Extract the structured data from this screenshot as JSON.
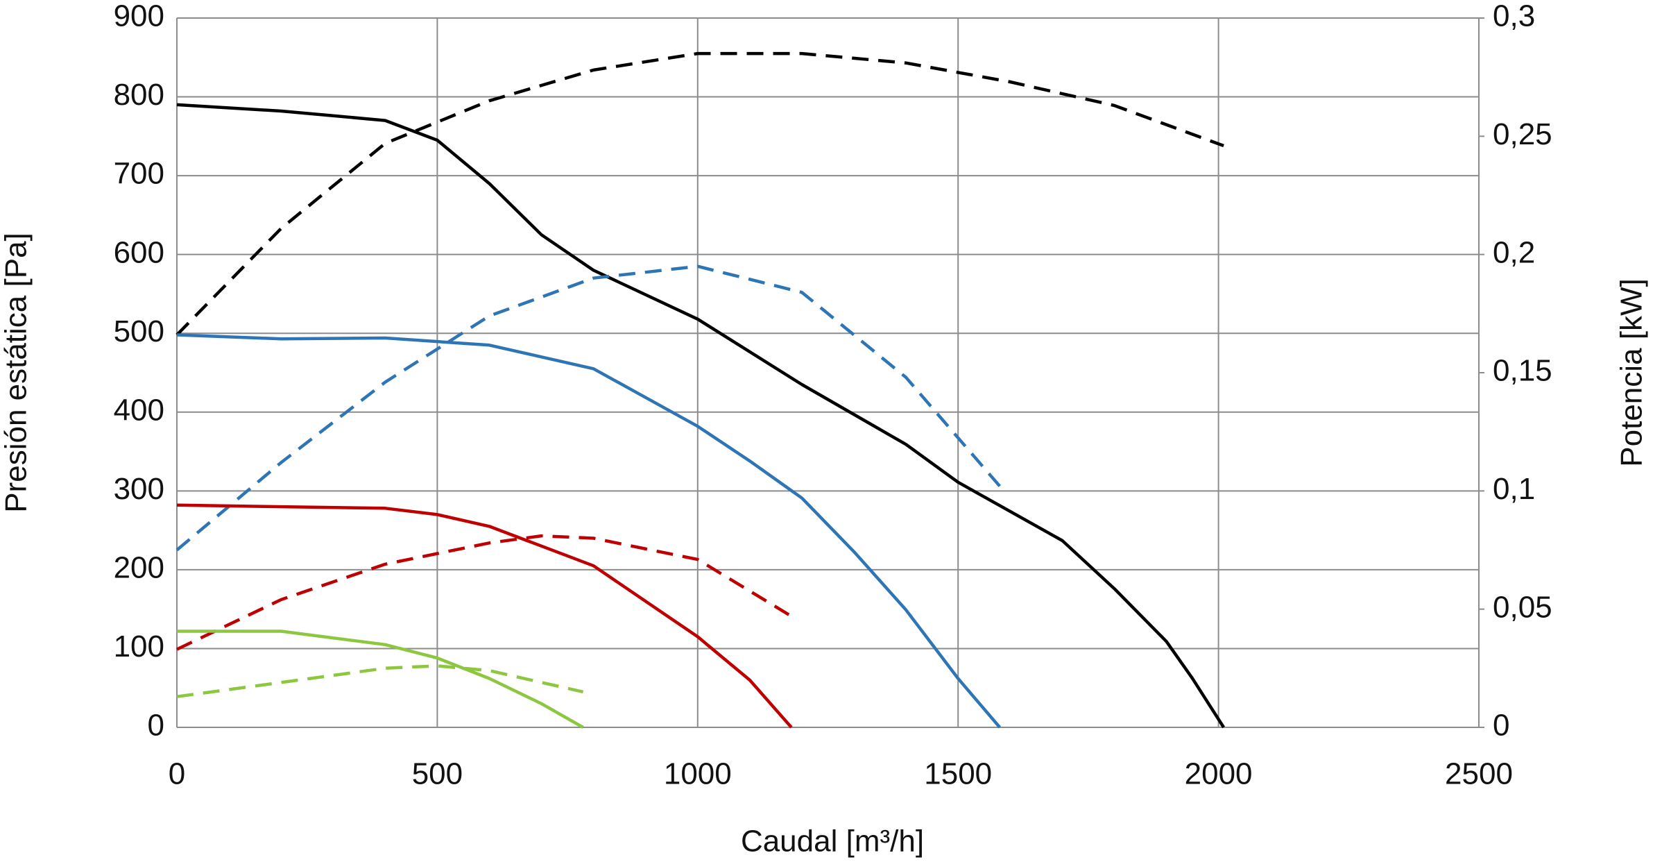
{
  "chart_data": {
    "type": "line",
    "x_label": "Caudal [m³/h]",
    "y_label": "Presión estática [Pa]",
    "y2_label": "Potencia [kW]",
    "xlim": [
      0,
      2500
    ],
    "xticks": [
      0,
      500,
      1000,
      1500,
      2000,
      2500
    ],
    "ylim": [
      0,
      900
    ],
    "yticks": [
      0,
      100,
      200,
      300,
      400,
      500,
      600,
      700,
      800,
      900
    ],
    "y2lim": [
      0,
      0.3
    ],
    "y2ticks": [
      0,
      {
        "value": 0.05,
        "label": "0,05"
      },
      {
        "value": 0.1,
        "label": "0,1"
      },
      {
        "value": 0.15,
        "label": "0,15"
      },
      {
        "value": 0.2,
        "label": "0,2"
      },
      {
        "value": 0.25,
        "label": "0,25"
      },
      {
        "value": 0.3,
        "label": "0,3"
      }
    ],
    "grid": true,
    "series": [
      {
        "color": "#000000",
        "dashed": false,
        "x": [
          0,
          200,
          300,
          400,
          500,
          600,
          700,
          800,
          1000,
          1200,
          1400,
          1500,
          1700,
          1800,
          1900,
          1950,
          2010
        ],
        "values": [
          790,
          782,
          776,
          770,
          745,
          690,
          625,
          580,
          518,
          435,
          359,
          311,
          237,
          176,
          109,
          62,
          0
        ]
      },
      {
        "color": "#000000",
        "dashed": true,
        "axis": "y2",
        "x": [
          0,
          200,
          400,
          600,
          800,
          1000,
          1200,
          1400,
          1600,
          1800,
          2010
        ],
        "values": [
          0.166,
          0.211,
          0.247,
          0.265,
          0.278,
          0.285,
          0.285,
          0.281,
          0.273,
          0.263,
          0.246
        ]
      },
      {
        "color": "#2e75b6",
        "dashed": false,
        "x": [
          0,
          200,
          400,
          600,
          800,
          1000,
          1100,
          1200,
          1300,
          1400,
          1500,
          1580
        ],
        "values": [
          498,
          493,
          494,
          485,
          455,
          382,
          338,
          291,
          223,
          149,
          62,
          0
        ]
      },
      {
        "color": "#2e75b6",
        "dashed": true,
        "axis": "y2",
        "x": [
          0,
          200,
          400,
          600,
          800,
          1000,
          1200,
          1400,
          1580
        ],
        "values": [
          0.075,
          0.112,
          0.146,
          0.174,
          0.19,
          0.195,
          0.184,
          0.148,
          0.102
        ]
      },
      {
        "color": "#c00000",
        "dashed": false,
        "x": [
          0,
          400,
          500,
          600,
          800,
          1000,
          1100,
          1180
        ],
        "values": [
          282,
          278,
          270,
          255,
          205,
          115,
          60,
          0
        ]
      },
      {
        "color": "#c00000",
        "dashed": true,
        "axis": "y2",
        "x": [
          0,
          200,
          400,
          600,
          700,
          800,
          1000,
          1180
        ],
        "values": [
          0.033,
          0.054,
          0.069,
          0.078,
          0.081,
          0.08,
          0.071,
          0.047
        ]
      },
      {
        "color": "#8dc63f",
        "dashed": false,
        "x": [
          0,
          200,
          400,
          500,
          600,
          700,
          780
        ],
        "values": [
          122,
          122,
          105,
          88,
          62,
          30,
          0
        ]
      },
      {
        "color": "#8dc63f",
        "dashed": true,
        "axis": "y2",
        "x": [
          0,
          200,
          400,
          500,
          600,
          780
        ],
        "values": [
          0.013,
          0.019,
          0.025,
          0.026,
          0.024,
          0.015
        ]
      }
    ]
  }
}
